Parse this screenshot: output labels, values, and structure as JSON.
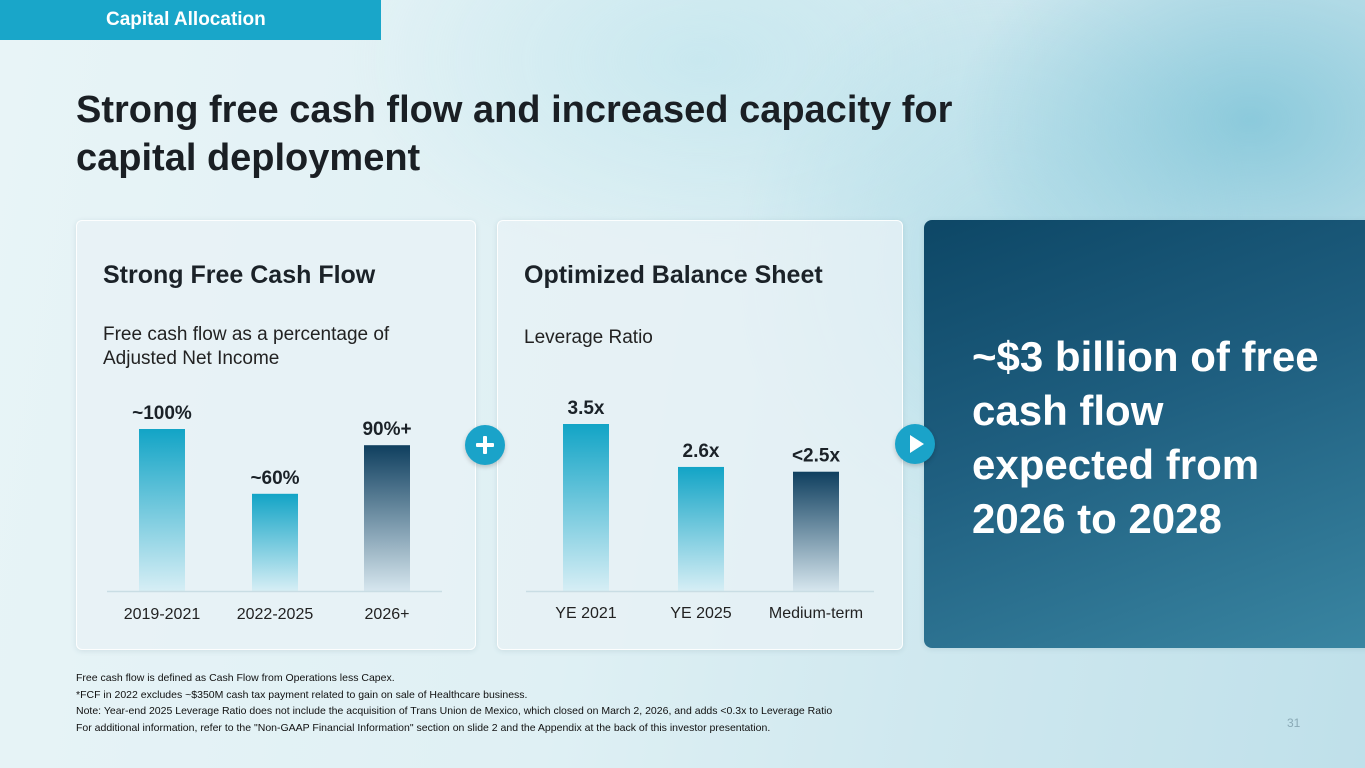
{
  "section_tag": "Capital Allocation",
  "title": "Strong free cash flow and increased capacity for capital deployment",
  "panels": {
    "fcf": {
      "heading": "Strong Free Cash Flow",
      "subtitle": "Free cash flow as a percentage of Adjusted Net Income"
    },
    "balance": {
      "heading": "Optimized Balance Sheet",
      "subtitle": "Leverage Ratio"
    },
    "highlight": {
      "text": "~$3 billion of free cash flow expected from 2026 to 2028"
    }
  },
  "icons": {
    "plus": "plus-icon",
    "arrow": "play-arrow-icon"
  },
  "colors": {
    "accent": "#1aa3c9",
    "dark": "#0d4766",
    "bar_top": "#12a4c6",
    "bar_dark": "#0f3f5f"
  },
  "chart_data": [
    {
      "type": "bar",
      "categories": [
        "2019-2021",
        "2022-2025",
        "2026+"
      ],
      "values": [
        100,
        60,
        90
      ],
      "data_labels": [
        "~100%",
        "~60%",
        "90%+"
      ],
      "ylim": [
        0,
        100
      ],
      "title": "Free cash flow as a percentage of Adjusted Net Income",
      "xlabel": "",
      "ylabel": "",
      "grid": false
    },
    {
      "type": "bar",
      "categories": [
        "YE 2021",
        "YE 2025",
        "Medium-term"
      ],
      "values": [
        3.5,
        2.6,
        2.5
      ],
      "data_labels": [
        "3.5x",
        "2.6x",
        "<2.5x"
      ],
      "ylim": [
        0,
        3.5
      ],
      "title": "Leverage Ratio",
      "xlabel": "",
      "ylabel": "",
      "grid": false
    }
  ],
  "footnotes": [
    "Free cash flow is defined as Cash Flow from Operations less Capex.",
    "*FCF in 2022 excludes ~$350M cash tax payment related to gain on sale of Healthcare business.",
    "Note: Year-end 2025 Leverage Ratio does not include the acquisition of Trans Union de Mexico, which closed on March 2, 2026, and adds <0.3x to Leverage Ratio",
    "For additional information, refer to the \"Non-GAAP Financial Information\" section on slide 2 and the Appendix at the back of this investor presentation."
  ],
  "page_number": "31"
}
